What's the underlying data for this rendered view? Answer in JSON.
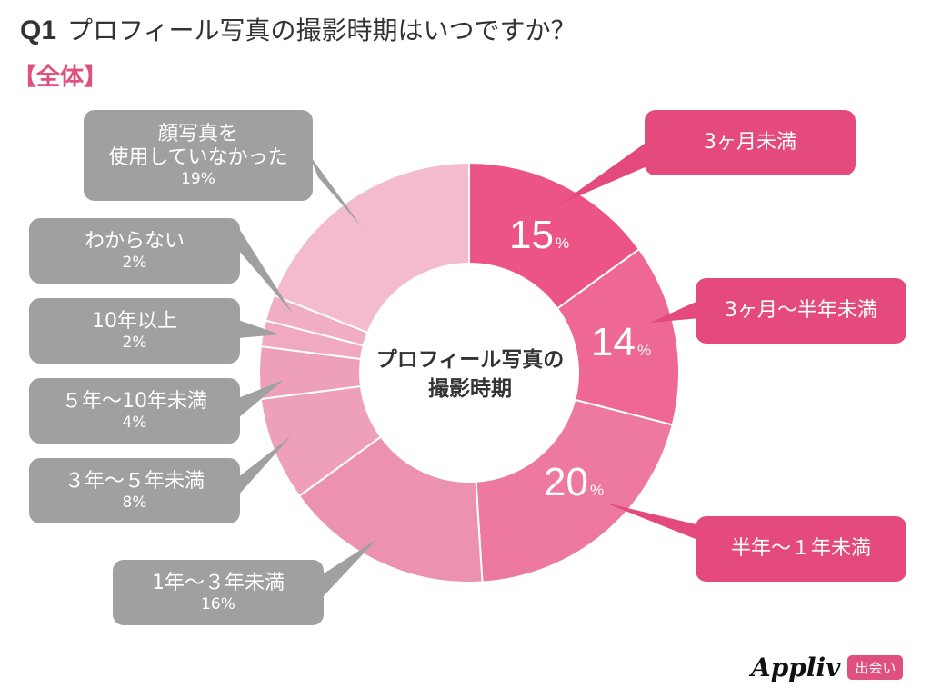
{
  "header": {
    "question_no": "Q1",
    "question": "プロフィール写真の撮影時期はいつですか？",
    "segment": "【全体】"
  },
  "center_label": {
    "line1": "プロフィール写真の",
    "line2": "撮影時期"
  },
  "callouts": {
    "no_face": {
      "label1": "顔写真を",
      "label2": "使用していなかった",
      "pct": "19%"
    },
    "unknown": {
      "label": "わからない",
      "pct": "2%"
    },
    "over10": {
      "label": "10年以上",
      "pct": "2%"
    },
    "y5to10": {
      "label": "５年～10年未満",
      "pct": "4%"
    },
    "y3to5": {
      "label": "３年～５年未満",
      "pct": "8%"
    },
    "y1to3": {
      "label": "1年～３年未満",
      "pct": "16%"
    },
    "m0to3": {
      "label": "3ヶ月未満"
    },
    "m3to6": {
      "label": "3ヶ月～半年未満"
    },
    "m6to12": {
      "label": "半年～１年未満"
    }
  },
  "slice_labels": {
    "m0to3": {
      "value": "15",
      "unit": "%"
    },
    "m3to6": {
      "value": "14",
      "unit": "%"
    },
    "m6to12": {
      "value": "20",
      "unit": "%"
    }
  },
  "logo": {
    "brand": "Appliv",
    "tag": "出会い"
  },
  "colors": {
    "m0to3": "#ec5486",
    "m3to6": "#ee6893",
    "m6to12": "#ee79a0",
    "y1to3": "#ec92b0",
    "y3to5": "#eea0ba",
    "y5to10": "#eea0ba",
    "over10": "#f0a9c0",
    "unknown": "#f0aec4",
    "no_face": "#f3bbcd",
    "callout_gray": "#a0a0a0",
    "callout_pink": "#e44a7c",
    "accent": "#e0507f"
  },
  "chart_data": {
    "type": "pie",
    "subtype": "donut",
    "title": "Q1 プロフィール写真の撮影時期はいつですか？",
    "subtitle": "【全体】",
    "center_text": "プロフィール写真の撮影時期",
    "categories": [
      "3ヶ月未満",
      "3ヶ月～半年未満",
      "半年～１年未満",
      "1年～３年未満",
      "３年～５年未満",
      "５年～10年未満",
      "10年以上",
      "わからない",
      "顔写真を使用していなかった"
    ],
    "values": [
      15,
      14,
      20,
      16,
      8,
      4,
      2,
      2,
      19
    ],
    "unit": "%",
    "start_angle": "12 o'clock",
    "direction": "clockwise",
    "legend": "callouts"
  }
}
